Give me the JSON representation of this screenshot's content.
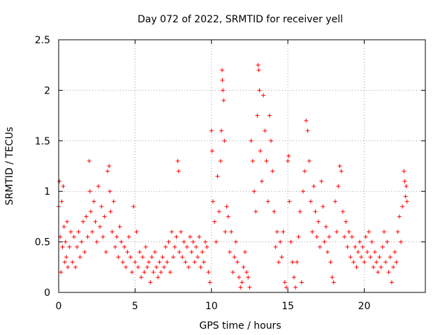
{
  "chart_data": {
    "type": "scatter",
    "title": "Day 072 of 2022, SRMTID for receiver yell",
    "xlabel": "GPS time / hours",
    "ylabel": "SRMTID / TECUs",
    "xlim": [
      0,
      24
    ],
    "ylim": [
      0,
      2.5
    ],
    "x_ticks": [
      0,
      5,
      10,
      15,
      20
    ],
    "y_ticks": [
      0,
      0.5,
      1,
      1.5,
      2,
      2.5
    ],
    "x_tick_labels": [
      "0",
      "5",
      "10",
      "15",
      "20"
    ],
    "y_tick_labels": [
      "0",
      "0.5",
      "1",
      "1.5",
      "2",
      "2.5"
    ],
    "grid": true,
    "marker": "+",
    "color": "#ff0000",
    "series": [
      {
        "name": "SRMTID",
        "points": [
          [
            0.0,
            0.85
          ],
          [
            0.05,
            1.1
          ],
          [
            0.1,
            0.55
          ],
          [
            0.15,
            0.2
          ],
          [
            0.2,
            0.9
          ],
          [
            0.25,
            0.45
          ],
          [
            0.3,
            1.05
          ],
          [
            0.35,
            0.65
          ],
          [
            0.4,
            0.3
          ],
          [
            0.45,
            0.5
          ],
          [
            0.5,
            0.35
          ],
          [
            0.55,
            0.7
          ],
          [
            0.6,
            0.25
          ],
          [
            0.7,
            0.45
          ],
          [
            0.8,
            0.6
          ],
          [
            0.9,
            0.3
          ],
          [
            1.0,
            0.55
          ],
          [
            1.1,
            0.25
          ],
          [
            1.2,
            0.45
          ],
          [
            1.3,
            0.6
          ],
          [
            1.4,
            0.35
          ],
          [
            1.5,
            0.5
          ],
          [
            1.6,
            0.7
          ],
          [
            1.7,
            0.4
          ],
          [
            1.8,
            0.75
          ],
          [
            1.9,
            0.55
          ],
          [
            2.0,
            1.3
          ],
          [
            2.05,
            1.0
          ],
          [
            2.1,
            0.8
          ],
          [
            2.2,
            0.6
          ],
          [
            2.3,
            0.9
          ],
          [
            2.4,
            0.7
          ],
          [
            2.5,
            0.5
          ],
          [
            2.6,
            1.05
          ],
          [
            2.7,
            0.65
          ],
          [
            2.8,
            0.85
          ],
          [
            2.9,
            0.55
          ],
          [
            3.0,
            0.75
          ],
          [
            3.1,
            0.4
          ],
          [
            3.2,
            1.2
          ],
          [
            3.3,
            1.25
          ],
          [
            3.35,
            1.0
          ],
          [
            3.4,
            0.8
          ],
          [
            3.5,
            0.6
          ],
          [
            3.6,
            0.9
          ],
          [
            3.7,
            0.45
          ],
          [
            3.8,
            0.55
          ],
          [
            3.9,
            0.35
          ],
          [
            4.0,
            0.65
          ],
          [
            4.1,
            0.5
          ],
          [
            4.2,
            0.3
          ],
          [
            4.3,
            0.45
          ],
          [
            4.4,
            0.25
          ],
          [
            4.5,
            0.4
          ],
          [
            4.6,
            0.55
          ],
          [
            4.7,
            0.35
          ],
          [
            4.8,
            0.2
          ],
          [
            4.9,
            0.85
          ],
          [
            5.0,
            0.3
          ],
          [
            5.1,
            0.6
          ],
          [
            5.2,
            0.25
          ],
          [
            5.3,
            0.4
          ],
          [
            5.4,
            0.15
          ],
          [
            5.5,
            0.35
          ],
          [
            5.6,
            0.2
          ],
          [
            5.7,
            0.45
          ],
          [
            5.8,
            0.25
          ],
          [
            5.9,
            0.3
          ],
          [
            6.0,
            0.1
          ],
          [
            6.1,
            0.35
          ],
          [
            6.2,
            0.2
          ],
          [
            6.3,
            0.4
          ],
          [
            6.4,
            0.25
          ],
          [
            6.5,
            0.15
          ],
          [
            6.6,
            0.3
          ],
          [
            6.7,
            0.2
          ],
          [
            6.8,
            0.35
          ],
          [
            6.9,
            0.25
          ],
          [
            7.0,
            0.45
          ],
          [
            7.1,
            0.3
          ],
          [
            7.2,
            0.5
          ],
          [
            7.3,
            0.2
          ],
          [
            7.4,
            0.6
          ],
          [
            7.5,
            0.35
          ],
          [
            7.6,
            0.45
          ],
          [
            7.7,
            0.55
          ],
          [
            7.8,
            1.3
          ],
          [
            7.85,
            1.2
          ],
          [
            7.9,
            0.4
          ],
          [
            8.0,
            0.6
          ],
          [
            8.1,
            0.35
          ],
          [
            8.2,
            0.5
          ],
          [
            8.3,
            0.3
          ],
          [
            8.4,
            0.45
          ],
          [
            8.5,
            0.25
          ],
          [
            8.6,
            0.55
          ],
          [
            8.7,
            0.4
          ],
          [
            8.8,
            0.5
          ],
          [
            8.9,
            0.3
          ],
          [
            9.0,
            0.45
          ],
          [
            9.1,
            0.35
          ],
          [
            9.2,
            0.55
          ],
          [
            9.3,
            0.25
          ],
          [
            9.4,
            0.4
          ],
          [
            9.5,
            0.3
          ],
          [
            9.6,
            0.5
          ],
          [
            9.7,
            0.45
          ],
          [
            9.8,
            0.2
          ],
          [
            9.9,
            0.1
          ],
          [
            10.0,
            1.6
          ],
          [
            10.05,
            1.4
          ],
          [
            10.1,
            0.9
          ],
          [
            10.2,
            0.7
          ],
          [
            10.3,
            0.5
          ],
          [
            10.4,
            1.15
          ],
          [
            10.5,
            0.8
          ],
          [
            10.6,
            1.3
          ],
          [
            10.65,
            1.6
          ],
          [
            10.7,
            2.2
          ],
          [
            10.72,
            2.1
          ],
          [
            10.75,
            2.0
          ],
          [
            10.8,
            1.9
          ],
          [
            10.85,
            1.5
          ],
          [
            10.9,
            0.6
          ],
          [
            11.0,
            0.85
          ],
          [
            11.1,
            0.75
          ],
          [
            11.2,
            0.4
          ],
          [
            11.3,
            0.6
          ],
          [
            11.4,
            0.2
          ],
          [
            11.5,
            0.35
          ],
          [
            11.6,
            0.5
          ],
          [
            11.7,
            0.3
          ],
          [
            11.8,
            0.15
          ],
          [
            11.9,
            0.05
          ],
          [
            12.0,
            0.1
          ],
          [
            12.1,
            0.25
          ],
          [
            12.2,
            0.4
          ],
          [
            12.3,
            0.2
          ],
          [
            12.4,
            0.15
          ],
          [
            12.5,
            0.05
          ],
          [
            12.6,
            1.5
          ],
          [
            12.7,
            1.3
          ],
          [
            12.8,
            1.0
          ],
          [
            12.9,
            0.8
          ],
          [
            13.0,
            1.75
          ],
          [
            13.05,
            2.25
          ],
          [
            13.1,
            2.2
          ],
          [
            13.15,
            2.0
          ],
          [
            13.2,
            1.4
          ],
          [
            13.3,
            1.1
          ],
          [
            13.4,
            1.95
          ],
          [
            13.5,
            1.6
          ],
          [
            13.6,
            1.3
          ],
          [
            13.7,
            0.9
          ],
          [
            13.8,
            1.75
          ],
          [
            13.9,
            1.5
          ],
          [
            14.0,
            1.2
          ],
          [
            14.1,
            0.8
          ],
          [
            14.2,
            0.45
          ],
          [
            14.3,
            0.6
          ],
          [
            14.4,
            0.3
          ],
          [
            14.5,
            0.5
          ],
          [
            14.6,
            0.35
          ],
          [
            14.7,
            0.6
          ],
          [
            14.8,
            0.1
          ],
          [
            14.9,
            0.05
          ],
          [
            15.0,
            1.3
          ],
          [
            15.05,
            1.35
          ],
          [
            15.1,
            0.9
          ],
          [
            15.2,
            0.5
          ],
          [
            15.3,
            0.3
          ],
          [
            15.4,
            0.15
          ],
          [
            15.5,
            0.05
          ],
          [
            15.6,
            0.3
          ],
          [
            15.7,
            0.55
          ],
          [
            15.8,
            0.8
          ],
          [
            15.9,
            0.1
          ],
          [
            16.0,
            1.0
          ],
          [
            16.1,
            1.2
          ],
          [
            16.2,
            1.7
          ],
          [
            16.3,
            1.6
          ],
          [
            16.4,
            1.3
          ],
          [
            16.5,
            0.9
          ],
          [
            16.6,
            0.6
          ],
          [
            16.7,
            1.05
          ],
          [
            16.8,
            0.8
          ],
          [
            16.9,
            0.55
          ],
          [
            17.0,
            0.7
          ],
          [
            17.1,
            0.45
          ],
          [
            17.2,
            1.1
          ],
          [
            17.3,
            0.85
          ],
          [
            17.4,
            0.5
          ],
          [
            17.5,
            0.65
          ],
          [
            17.6,
            0.4
          ],
          [
            17.7,
            0.55
          ],
          [
            17.8,
            0.3
          ],
          [
            17.9,
            0.15
          ],
          [
            18.0,
            0.1
          ],
          [
            18.1,
            0.9
          ],
          [
            18.2,
            0.6
          ],
          [
            18.3,
            1.05
          ],
          [
            18.4,
            1.25
          ],
          [
            18.5,
            1.2
          ],
          [
            18.6,
            0.8
          ],
          [
            18.7,
            0.55
          ],
          [
            18.8,
            0.7
          ],
          [
            18.9,
            0.45
          ],
          [
            19.0,
            0.6
          ],
          [
            19.1,
            0.35
          ],
          [
            19.2,
            0.55
          ],
          [
            19.3,
            0.3
          ],
          [
            19.4,
            0.45
          ],
          [
            19.5,
            0.25
          ],
          [
            19.6,
            0.4
          ],
          [
            19.7,
            0.5
          ],
          [
            19.8,
            0.35
          ],
          [
            19.9,
            0.45
          ],
          [
            20.0,
            0.3
          ],
          [
            20.1,
            0.55
          ],
          [
            20.2,
            0.4
          ],
          [
            20.3,
            0.6
          ],
          [
            20.4,
            0.35
          ],
          [
            20.5,
            0.5
          ],
          [
            20.6,
            0.25
          ],
          [
            20.7,
            0.4
          ],
          [
            20.8,
            0.3
          ],
          [
            20.9,
            0.2
          ],
          [
            21.0,
            0.35
          ],
          [
            21.1,
            0.25
          ],
          [
            21.2,
            0.45
          ],
          [
            21.3,
            0.6
          ],
          [
            21.4,
            0.3
          ],
          [
            21.5,
            0.5
          ],
          [
            21.6,
            0.2
          ],
          [
            21.7,
            0.35
          ],
          [
            21.8,
            0.1
          ],
          [
            21.9,
            0.25
          ],
          [
            22.0,
            0.4
          ],
          [
            22.1,
            0.3
          ],
          [
            22.2,
            0.6
          ],
          [
            22.3,
            0.75
          ],
          [
            22.4,
            0.5
          ],
          [
            22.5,
            0.85
          ],
          [
            22.6,
            1.2
          ],
          [
            22.65,
            1.1
          ],
          [
            22.7,
            0.95
          ],
          [
            22.75,
            1.05
          ],
          [
            22.8,
            0.9
          ]
        ]
      }
    ]
  }
}
